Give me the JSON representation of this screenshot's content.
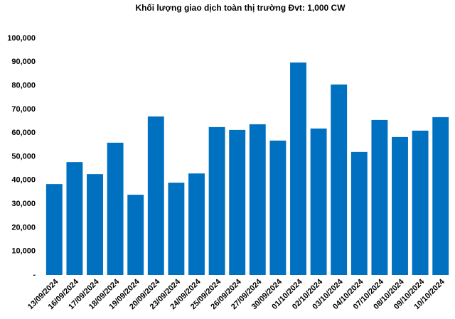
{
  "chart_data": {
    "type": "bar",
    "title": "Khối lượng giao dịch toàn thị trường Đvt: 1,000 CW",
    "categories": [
      "13/09/2024",
      "16/09/2024",
      "17/09/2024",
      "18/09/2024",
      "19/09/2024",
      "20/09/2024",
      "23/09/2024",
      "24/09/2024",
      "25/09/2024",
      "26/09/2024",
      "27/09/2024",
      "30/09/2024",
      "01/10/2024",
      "02/10/2024",
      "03/10/2024",
      "04/10/2024",
      "07/10/2024",
      "08/10/2024",
      "09/10/2024",
      "10/10/2024"
    ],
    "values": [
      38400,
      47700,
      42600,
      55900,
      33900,
      67000,
      39000,
      42900,
      62500,
      61300,
      63700,
      56800,
      89800,
      61900,
      80500,
      52000,
      65500,
      58300,
      61000,
      66700
    ],
    "color": "#0070c0",
    "ylim": [
      0,
      100000
    ],
    "yticks": [
      {
        "value": 0,
        "label": "-"
      },
      {
        "value": 10000,
        "label": "10,000"
      },
      {
        "value": 20000,
        "label": "20,000"
      },
      {
        "value": 30000,
        "label": "30,000"
      },
      {
        "value": 40000,
        "label": "40,000"
      },
      {
        "value": 50000,
        "label": "50,000"
      },
      {
        "value": 60000,
        "label": "60,000"
      },
      {
        "value": 70000,
        "label": "70,000"
      },
      {
        "value": 80000,
        "label": "80,000"
      },
      {
        "value": 90000,
        "label": "90,000"
      },
      {
        "value": 100000,
        "label": "100,000"
      }
    ],
    "grid": false
  }
}
